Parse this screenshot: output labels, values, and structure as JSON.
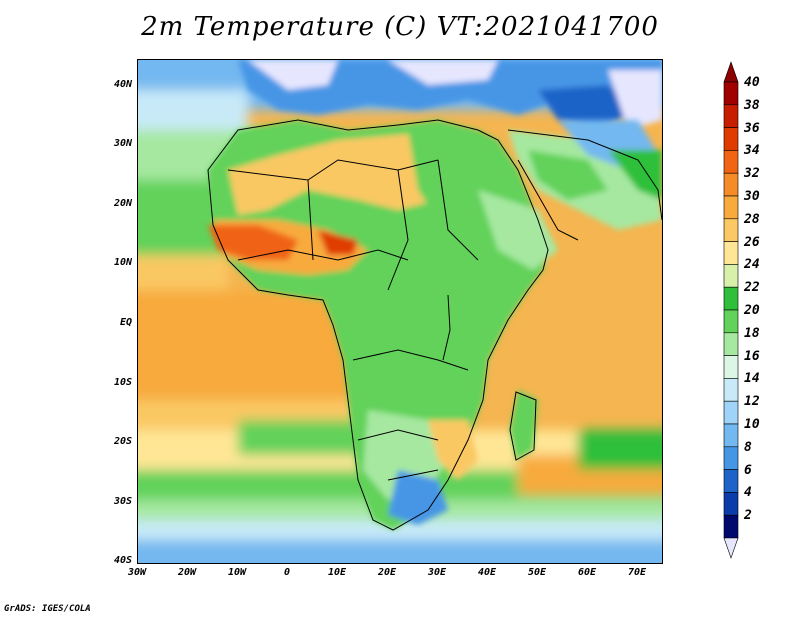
{
  "title": "2m Temperature (C) VT:2021041700",
  "credit": "GrADS: IGES/COLA",
  "map": {
    "projection": "latlon",
    "lon_range": [
      -30,
      75
    ],
    "lat_range": [
      -40,
      45
    ],
    "lat_ticks": [
      "40N",
      "30N",
      "20N",
      "10N",
      "EQ",
      "10S",
      "20S",
      "30S",
      "40S"
    ],
    "lon_ticks": [
      "30W",
      "20W",
      "10W",
      "0",
      "10E",
      "20E",
      "30E",
      "40E",
      "50E",
      "60E",
      "70E"
    ]
  },
  "colorbar": {
    "levels": [
      "40",
      "38",
      "36",
      "34",
      "32",
      "30",
      "28",
      "26",
      "24",
      "22",
      "20",
      "18",
      "16",
      "14",
      "12",
      "10",
      "8",
      "6",
      "4",
      "2"
    ],
    "colors": [
      "#a00000",
      "#c81e00",
      "#e03c00",
      "#f06414",
      "#f58c28",
      "#f8aa3c",
      "#fac864",
      "#ffe696",
      "#d7f0aa",
      "#2fbf3a",
      "#62d25a",
      "#a6e8a0",
      "#dcf6e6",
      "#c8eaf8",
      "#9fd3f7",
      "#73b8f0",
      "#4696e6",
      "#1e64c8",
      "#0a3caa",
      "#000a6e"
    ],
    "under_color": "#e6e6ff",
    "over_color": "#8c0000"
  }
}
